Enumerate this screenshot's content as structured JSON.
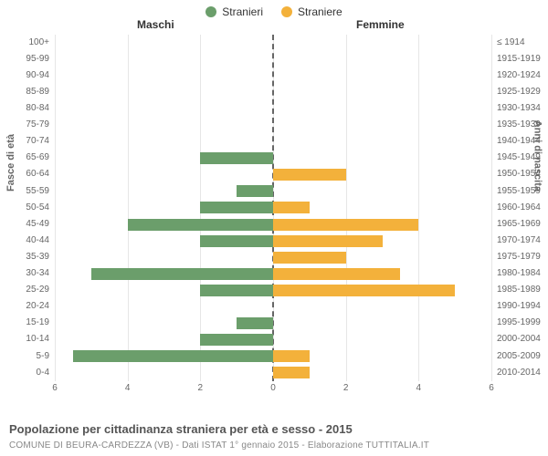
{
  "legend": {
    "male": {
      "label": "Stranieri",
      "color": "#6b9e6b"
    },
    "female": {
      "label": "Straniere",
      "color": "#f3b13b"
    }
  },
  "headers": {
    "left": "Maschi",
    "right": "Femmine"
  },
  "axis_titles": {
    "left": "Fasce di età",
    "right": "Anni di nascita"
  },
  "chart": {
    "type": "population-pyramid",
    "x_max": 6,
    "x_ticks": [
      6,
      4,
      2,
      0,
      2,
      4,
      6
    ],
    "grid_color": "#e6e6e6",
    "center_dash_color": "#666666",
    "background": "#ffffff",
    "bar_colors": {
      "male": "#6b9e6b",
      "female": "#f3b13b"
    },
    "label_fontsize": 10,
    "rows": [
      {
        "age": "100+",
        "birth": "≤ 1914",
        "m": 0,
        "f": 0
      },
      {
        "age": "95-99",
        "birth": "1915-1919",
        "m": 0,
        "f": 0
      },
      {
        "age": "90-94",
        "birth": "1920-1924",
        "m": 0,
        "f": 0
      },
      {
        "age": "85-89",
        "birth": "1925-1929",
        "m": 0,
        "f": 0
      },
      {
        "age": "80-84",
        "birth": "1930-1934",
        "m": 0,
        "f": 0
      },
      {
        "age": "75-79",
        "birth": "1935-1939",
        "m": 0,
        "f": 0
      },
      {
        "age": "70-74",
        "birth": "1940-1944",
        "m": 0,
        "f": 0
      },
      {
        "age": "65-69",
        "birth": "1945-1949",
        "m": 2,
        "f": 0
      },
      {
        "age": "60-64",
        "birth": "1950-1954",
        "m": 0,
        "f": 2
      },
      {
        "age": "55-59",
        "birth": "1955-1959",
        "m": 1,
        "f": 0
      },
      {
        "age": "50-54",
        "birth": "1960-1964",
        "m": 2,
        "f": 1
      },
      {
        "age": "45-49",
        "birth": "1965-1969",
        "m": 4,
        "f": 4
      },
      {
        "age": "40-44",
        "birth": "1970-1974",
        "m": 2,
        "f": 3
      },
      {
        "age": "35-39",
        "birth": "1975-1979",
        "m": 0,
        "f": 2
      },
      {
        "age": "30-34",
        "birth": "1980-1984",
        "m": 5,
        "f": 3.5
      },
      {
        "age": "25-29",
        "birth": "1985-1989",
        "m": 2,
        "f": 5
      },
      {
        "age": "20-24",
        "birth": "1990-1994",
        "m": 0,
        "f": 0
      },
      {
        "age": "15-19",
        "birth": "1995-1999",
        "m": 1,
        "f": 0
      },
      {
        "age": "10-14",
        "birth": "2000-2004",
        "m": 2,
        "f": 0
      },
      {
        "age": "5-9",
        "birth": "2005-2009",
        "m": 5.5,
        "f": 1
      },
      {
        "age": "0-4",
        "birth": "2010-2014",
        "m": 0,
        "f": 1
      }
    ]
  },
  "caption": "Popolazione per cittadinanza straniera per età e sesso - 2015",
  "subcaption": "COMUNE DI BEURA-CARDEZZA (VB) - Dati ISTAT 1° gennaio 2015 - Elaborazione TUTTITALIA.IT"
}
